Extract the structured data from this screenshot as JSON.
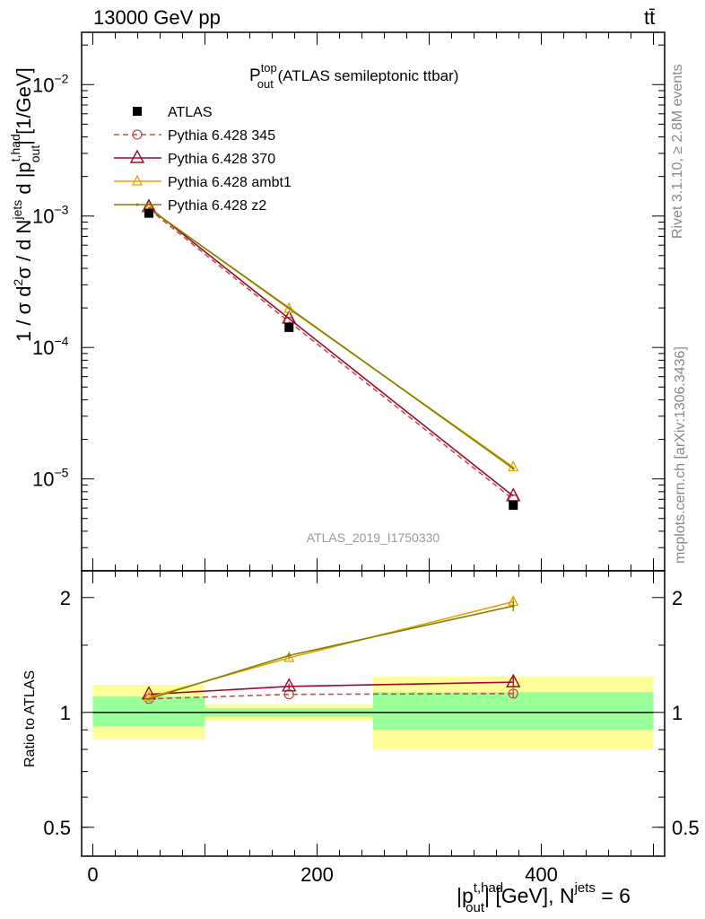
{
  "header": {
    "energy_label": "13000 GeV pp",
    "process_label": "tt̄"
  },
  "side_labels": {
    "rivet": "Rivet 3.1.10, ≥ 2.8M events",
    "mcplots": "mcplots.cern.ch [arXiv:1306.3436]"
  },
  "watermark": "ATLAS_2019_I1750330",
  "chart_data": [
    {
      "type": "line",
      "panel": "main",
      "title": {
        "main": "P",
        "sup": "top",
        "sub": "out",
        "rest": " (ATLAS semileptonic ttbar)"
      },
      "ylabel": "1 / σ d²σ / d N^jets d |p_out^t,had| [1/GeV]",
      "yscale": "log",
      "ylim": [
        2e-06,
        0.025
      ],
      "xlim": [
        -10,
        510
      ],
      "yticks": [
        {
          "value": 1e-05,
          "base": "10",
          "exp": "−5"
        },
        {
          "value": 0.0001,
          "base": "10",
          "exp": "−4"
        },
        {
          "value": 0.001,
          "base": "10",
          "exp": "−3"
        },
        {
          "value": 0.01,
          "base": "10",
          "exp": "−2"
        }
      ],
      "legend_position": "top-left",
      "data": {
        "name": "ATLAS",
        "color": "#000000",
        "x": [
          50,
          175,
          375
        ],
        "y": [
          0.00105,
          0.000142,
          6.3e-06
        ],
        "bins": [
          [
            0,
            100
          ],
          [
            100,
            250
          ],
          [
            250,
            500
          ]
        ]
      },
      "series": [
        {
          "name": "Pythia 6.428 345",
          "color": "#c0504d",
          "dash": "6,4",
          "marker": "circle",
          "x": [
            50,
            175,
            375
          ],
          "y": [
            0.00113,
            0.000157,
            7e-06
          ]
        },
        {
          "name": "Pythia 6.428 370",
          "color": "#9b0a2c",
          "dash": "",
          "marker": "triangle",
          "x": [
            50,
            175,
            375
          ],
          "y": [
            0.00117,
            0.000166,
            7.4e-06
          ]
        },
        {
          "name": "Pythia 6.428 ambt1",
          "color": "#e8a000",
          "dash": "",
          "marker": "triangle-small",
          "x": [
            50,
            175,
            375
          ],
          "y": [
            0.00115,
            0.000197,
            1.23e-05
          ]
        },
        {
          "name": "Pythia 6.428 z2",
          "color": "#808000",
          "dash": "",
          "marker": "dot",
          "x": [
            50,
            175,
            375
          ],
          "y": [
            0.00114,
            0.0002,
            1.2e-05
          ]
        }
      ]
    },
    {
      "type": "line",
      "panel": "ratio",
      "ylabel": "Ratio to ATLAS",
      "yscale": "log",
      "ylim": [
        0.42,
        2.35
      ],
      "xlim": [
        -10,
        510
      ],
      "yticks": [
        0.5,
        1,
        2
      ],
      "xticks": [
        0,
        200,
        400
      ],
      "xlabel": {
        "left": "|p",
        "sup": "t,had",
        "sub": "out",
        "mid": "| [GeV], N",
        "sup2": "jets",
        "right": " = 6"
      },
      "bands": [
        {
          "x": [
            0,
            100
          ],
          "inner": [
            0.92,
            1.1
          ],
          "outer": [
            0.85,
            1.18
          ]
        },
        {
          "x": [
            100,
            250
          ],
          "inner": [
            0.975,
            1.025
          ],
          "outer": [
            0.95,
            1.05
          ]
        },
        {
          "x": [
            250,
            500
          ],
          "inner": [
            0.9,
            1.13
          ],
          "outer": [
            0.8,
            1.24
          ]
        }
      ],
      "series": [
        {
          "name": "Pythia 6.428 345",
          "x": [
            50,
            175,
            375
          ],
          "y": [
            1.085,
            1.115,
            1.12
          ],
          "err": [
            0,
            0,
            0.03
          ]
        },
        {
          "name": "Pythia 6.428 370",
          "x": [
            50,
            175,
            375
          ],
          "y": [
            1.115,
            1.17,
            1.2
          ],
          "err": [
            0,
            0.02,
            0.04
          ]
        },
        {
          "name": "Pythia 6.428 ambt1",
          "x": [
            50,
            175,
            375
          ],
          "y": [
            1.095,
            1.39,
            1.95
          ],
          "err": [
            0,
            0.02,
            0.06
          ]
        },
        {
          "name": "Pythia 6.428 z2",
          "x": [
            50,
            175,
            375
          ],
          "y": [
            1.085,
            1.41,
            1.9
          ],
          "err": [
            0,
            0.02,
            0.06
          ]
        }
      ]
    }
  ]
}
